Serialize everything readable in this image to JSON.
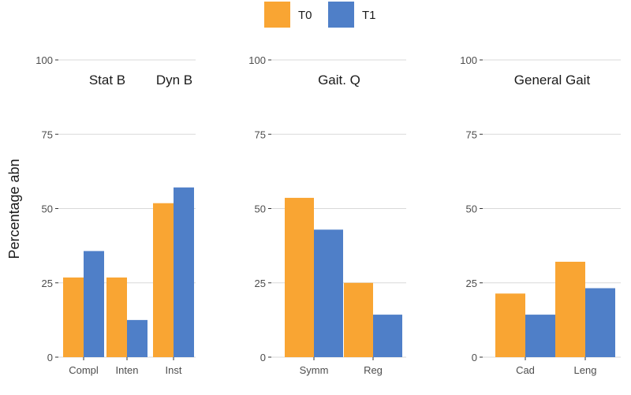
{
  "chart_data": {
    "type": "bar",
    "ylabel": "Percentage abn",
    "ylim": [
      0,
      100
    ],
    "yticks": [
      0,
      25,
      50,
      75,
      100
    ],
    "ytick_labels": [
      "0",
      "25",
      "50",
      "75",
      "100"
    ],
    "grid": true,
    "legend": {
      "position": "top-center",
      "entries": [
        {
          "name": "T0",
          "color": "#f9a533"
        },
        {
          "name": "T1",
          "color": "#4f7fc8"
        }
      ]
    },
    "panels": [
      {
        "titles": [
          "Stat B",
          "Dyn B"
        ],
        "categories": [
          "Compl",
          "Inten",
          "Inst"
        ],
        "series": [
          {
            "name": "T0",
            "values": [
              26.8,
              26.8,
              51.8
            ]
          },
          {
            "name": "T1",
            "values": [
              35.7,
              12.5,
              57.1
            ]
          }
        ]
      },
      {
        "titles": [
          "Gait. Q"
        ],
        "categories": [
          "Symm",
          "Reg"
        ],
        "series": [
          {
            "name": "T0",
            "values": [
              53.6,
              25.0
            ]
          },
          {
            "name": "T1",
            "values": [
              42.9,
              14.3
            ]
          }
        ]
      },
      {
        "titles": [
          "General Gait"
        ],
        "categories": [
          "Cad",
          "Leng"
        ],
        "series": [
          {
            "name": "T0",
            "values": [
              21.4,
              32.1
            ]
          },
          {
            "name": "T1",
            "values": [
              14.3,
              23.2
            ]
          }
        ]
      }
    ]
  }
}
